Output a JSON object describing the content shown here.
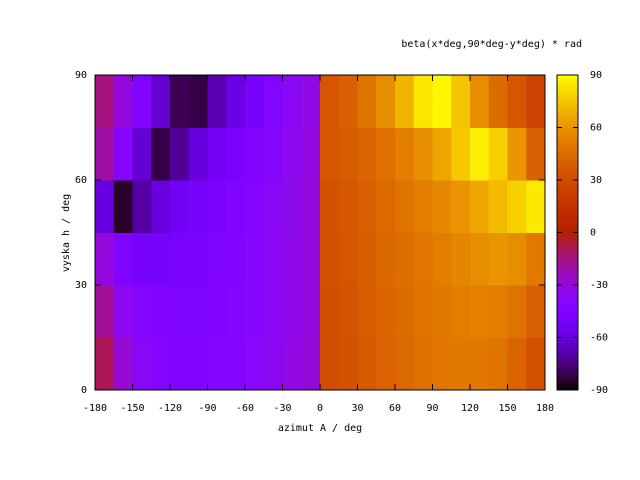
{
  "chart_data": {
    "type": "heatmap",
    "title": "beta(x*deg,90*deg-y*deg) * rad",
    "x_label": "azimut A / deg",
    "y_label": "vyska h / deg",
    "x": [
      -172.5,
      -157.5,
      -142.5,
      -127.5,
      -112.5,
      -97.5,
      -82.5,
      -67.5,
      -52.5,
      -37.5,
      -22.5,
      -7.5,
      7.5,
      22.5,
      37.5,
      52.5,
      67.5,
      82.5,
      97.5,
      112.5,
      127.5,
      142.5,
      157.5,
      172.5
    ],
    "y": [
      7.5,
      22.5,
      37.5,
      52.5,
      67.5,
      82.5
    ],
    "z": [
      [
        -10,
        -28,
        -38,
        -42,
        -44,
        -44,
        -43,
        -42,
        -39,
        -36,
        -32,
        -29,
        30,
        33,
        37,
        41,
        44,
        47,
        49,
        50,
        50,
        48,
        42,
        32
      ],
      [
        -18,
        -35,
        -42,
        -45,
        -46,
        -46,
        -45,
        -43,
        -40,
        -36,
        -33,
        -30,
        31,
        34,
        38,
        42,
        45,
        48,
        50,
        52,
        53,
        52,
        48,
        40
      ],
      [
        -30,
        -45,
        -50,
        -50,
        -49,
        -48,
        -46,
        -44,
        -41,
        -37,
        -33,
        -30,
        32,
        35,
        39,
        43,
        46,
        49,
        52,
        55,
        58,
        60,
        58,
        50
      ],
      [
        -60,
        -85,
        -70,
        -60,
        -54,
        -50,
        -47,
        -45,
        -42,
        -38,
        -34,
        -30,
        33,
        36,
        40,
        44,
        48,
        52,
        56,
        60,
        66,
        72,
        78,
        85
      ],
      [
        -20,
        -40,
        -62,
        -82,
        -72,
        -60,
        -53,
        -48,
        -44,
        -40,
        -35,
        -31,
        35,
        38,
        42,
        47,
        52,
        58,
        66,
        76,
        86,
        78,
        60,
        40
      ],
      [
        -15,
        -30,
        -45,
        -62,
        -80,
        -82,
        -68,
        -58,
        -50,
        -43,
        -37,
        -32,
        35,
        40,
        48,
        58,
        70,
        84,
        88,
        75,
        58,
        45,
        35,
        25
      ]
    ],
    "xlim": [
      -180,
      180
    ],
    "xticks": [
      -180,
      -150,
      -120,
      -90,
      -60,
      -30,
      0,
      30,
      60,
      90,
      120,
      150,
      180
    ],
    "ylim": [
      0,
      90
    ],
    "yticks": [
      0,
      30,
      60,
      90
    ],
    "cblim": [
      -90,
      90
    ],
    "cbticks": [
      -90,
      -60,
      -30,
      0,
      30,
      60,
      90
    ]
  }
}
